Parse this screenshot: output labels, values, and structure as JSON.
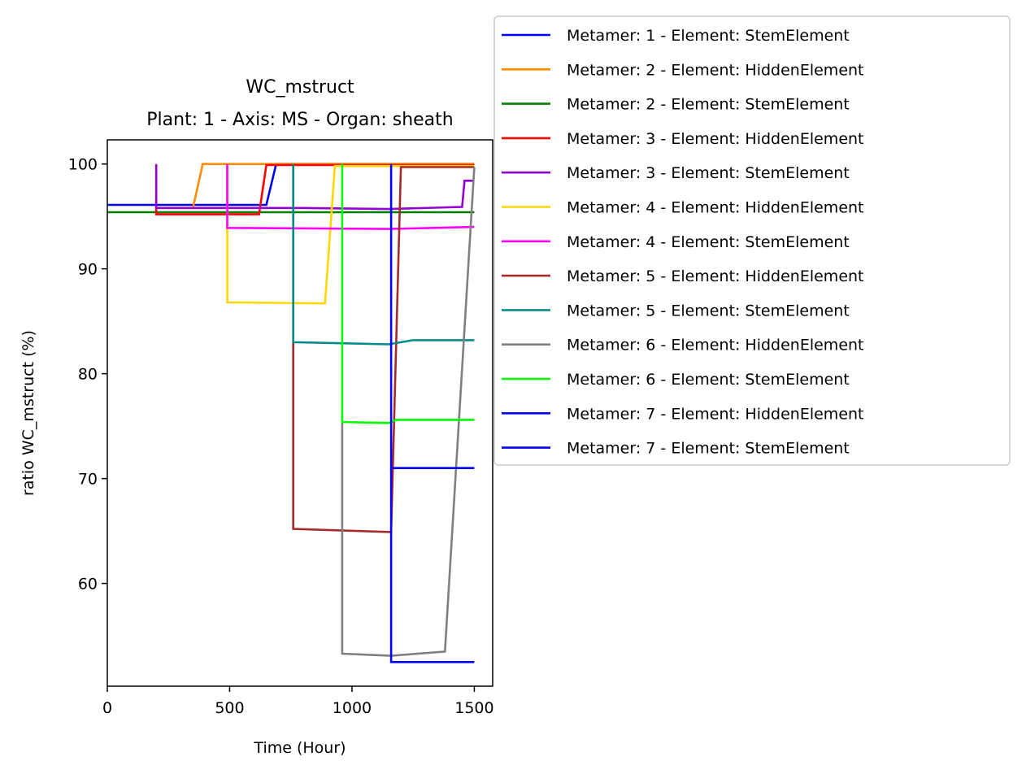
{
  "chart_data": {
    "type": "line",
    "title": "WC_mstruct",
    "subtitle": "Plant: 1 - Axis: MS - Organ: sheath",
    "xlabel": "Time (Hour)",
    "ylabel": "ratio WC_mstruct (%)",
    "xlim": [
      0,
      1575
    ],
    "ylim": [
      50.2,
      102.3
    ],
    "xticks": [
      0,
      500,
      1000,
      1500
    ],
    "yticks": [
      60,
      70,
      80,
      90,
      100
    ],
    "grid": false,
    "legend_position": "outside-top-right",
    "series": [
      {
        "name": "Metamer: 1 - Element: StemElement",
        "color": "#0000ff",
        "x": [
          0,
          650,
          690,
          1500
        ],
        "y": [
          96.1,
          96.1,
          100,
          100
        ]
      },
      {
        "name": "Metamer: 2 - Element: HiddenElement",
        "color": "#ff8c00",
        "x": [
          350,
          390,
          1500
        ],
        "y": [
          95.8,
          100,
          100
        ]
      },
      {
        "name": "Metamer: 2 - Element: StemElement",
        "color": "#008000",
        "x": [
          0,
          1500
        ],
        "y": [
          95.4,
          95.4
        ]
      },
      {
        "name": "Metamer: 3 - Element: HiddenElement",
        "color": "#ff0000",
        "x": [
          200,
          200,
          620,
          650,
          1500
        ],
        "y": [
          96.5,
          95.2,
          95.2,
          99.9,
          99.9
        ]
      },
      {
        "name": "Metamer: 3 - Element: StemElement",
        "color": "#9400d3",
        "x": [
          200,
          200,
          800,
          1150,
          1450,
          1460,
          1500
        ],
        "y": [
          100,
          95.8,
          95.8,
          95.7,
          95.9,
          98.4,
          98.4
        ]
      },
      {
        "name": "Metamer: 4 - Element: HiddenElement",
        "color": "#ffd700",
        "x": [
          490,
          490,
          890,
          930,
          1500
        ],
        "y": [
          100,
          86.8,
          86.7,
          99.8,
          99.8
        ]
      },
      {
        "name": "Metamer: 4 - Element: StemElement",
        "color": "#ff00ff",
        "x": [
          490,
          490,
          1150,
          1500
        ],
        "y": [
          100,
          93.9,
          93.8,
          94.0
        ]
      },
      {
        "name": "Metamer: 5 - Element: HiddenElement",
        "color": "#a52a2a",
        "x": [
          760,
          760,
          1160,
          1200,
          1500
        ],
        "y": [
          83,
          65.2,
          64.9,
          99.7,
          99.7
        ]
      },
      {
        "name": "Metamer: 5 - Element: StemElement",
        "color": "#008b8b",
        "x": [
          760,
          760,
          1150,
          1250,
          1500
        ],
        "y": [
          100,
          83.0,
          82.8,
          83.2,
          83.2
        ]
      },
      {
        "name": "Metamer: 6 - Element: HiddenElement",
        "color": "#808080",
        "x": [
          960,
          960,
          1160,
          1380,
          1500
        ],
        "y": [
          76,
          53.3,
          53.1,
          53.5,
          99.7
        ]
      },
      {
        "name": "Metamer: 6 - Element: StemElement",
        "color": "#00ff00",
        "x": [
          960,
          960,
          1150,
          1180,
          1500
        ],
        "y": [
          100,
          75.4,
          75.3,
          75.6,
          75.6
        ]
      },
      {
        "name": "Metamer: 7 - Element: HiddenElement",
        "color": "#0000ff",
        "x": [
          1160,
          1160,
          1500
        ],
        "y": [
          100,
          71.0,
          71.0
        ]
      },
      {
        "name": "Metamer: 7 - Element: StemElement",
        "color": "#0000ff",
        "x": [
          1160,
          1160,
          1500
        ],
        "y": [
          71,
          52.5,
          52.5
        ]
      }
    ]
  }
}
